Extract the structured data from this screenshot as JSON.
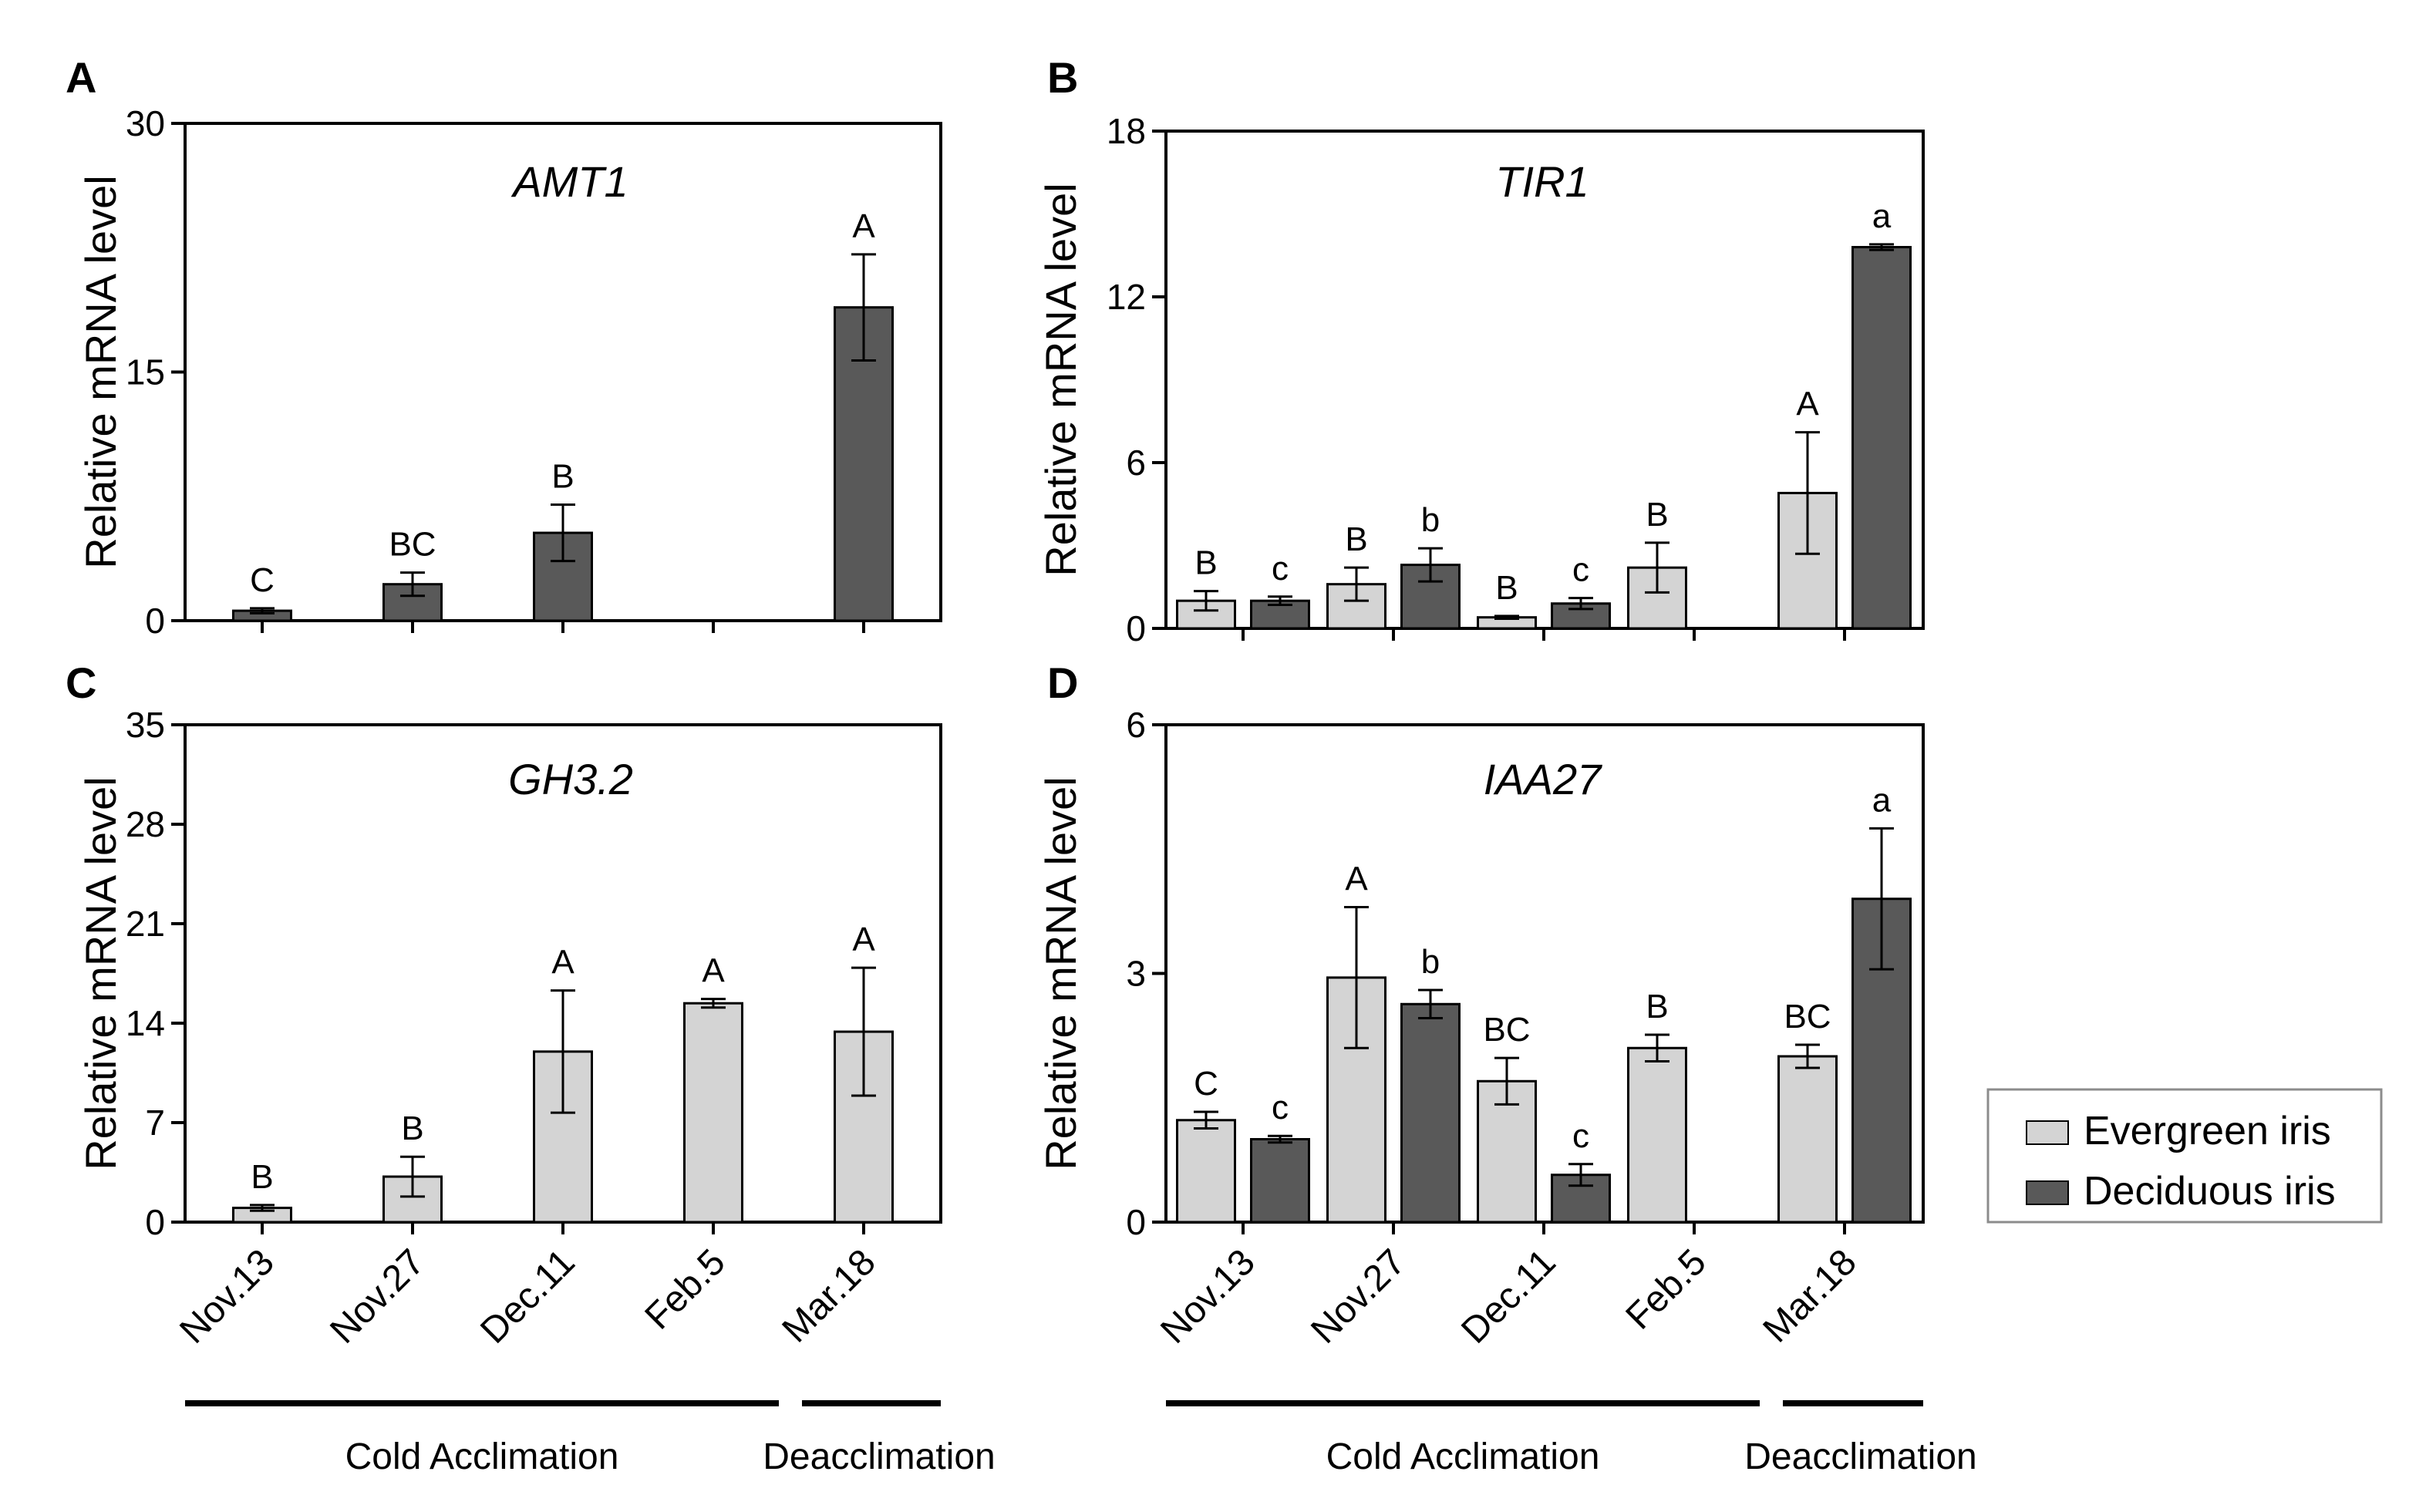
{
  "legend": [
    {
      "name": "Evergreen iris",
      "color": "#d4d4d4"
    },
    {
      "name": "Deciduous iris",
      "color": "#595959"
    }
  ],
  "x_categories": [
    "Nov.13",
    "Nov.27",
    "Dec.11",
    "Feb.5",
    "Mar.18"
  ],
  "phases": {
    "cold": "Cold Acclimation",
    "deacclimation": "Deacclimation"
  },
  "chart_data": [
    {
      "panel": "A",
      "type": "bar",
      "title": "AMT1",
      "ylabel": "Relative mRNA level",
      "ylim": [
        0,
        30
      ],
      "yticks": [
        0,
        15,
        30
      ],
      "categories": [
        "Nov.13",
        "Nov.27",
        "Dec.11",
        "Feb.5",
        "Mar.18"
      ],
      "series": [
        {
          "name": "Deciduous iris",
          "color": "#595959",
          "values": [
            0.6,
            2.2,
            5.3,
            null,
            18.9
          ],
          "errors": [
            0.15,
            0.7,
            1.7,
            null,
            3.2
          ],
          "labels": [
            "C",
            "BC",
            "B",
            null,
            "A"
          ]
        }
      ]
    },
    {
      "panel": "B",
      "type": "bar",
      "title": "TIR1",
      "ylabel": "Relative mRNA level",
      "ylim": [
        0,
        18
      ],
      "yticks": [
        0,
        6,
        12,
        18
      ],
      "categories": [
        "Nov.13",
        "Nov.27",
        "Dec.11",
        "Feb.5",
        "Mar.18"
      ],
      "series": [
        {
          "name": "Evergreen iris",
          "color": "#d4d4d4",
          "values": [
            1.0,
            1.6,
            0.4,
            2.2,
            4.9
          ],
          "errors": [
            0.35,
            0.6,
            0.05,
            0.9,
            2.2
          ],
          "labels": [
            "B",
            "B",
            "B",
            "B",
            "A"
          ]
        },
        {
          "name": "Deciduous iris",
          "color": "#595959",
          "values": [
            1.0,
            2.3,
            0.9,
            null,
            13.8
          ],
          "errors": [
            0.15,
            0.6,
            0.2,
            null,
            0.1
          ],
          "labels": [
            "c",
            "b",
            "c",
            null,
            "a"
          ]
        }
      ]
    },
    {
      "panel": "C",
      "type": "bar",
      "title": "GH3.2",
      "ylabel": "Relative mRNA level",
      "ylim": [
        0,
        35
      ],
      "yticks": [
        0,
        7,
        14,
        21,
        28,
        35
      ],
      "categories": [
        "Nov.13",
        "Nov.27",
        "Dec.11",
        "Feb.5",
        "Mar.18"
      ],
      "series": [
        {
          "name": "Evergreen iris",
          "color": "#d4d4d4",
          "values": [
            1.0,
            3.2,
            12.0,
            15.4,
            13.4
          ],
          "errors": [
            0.2,
            1.4,
            4.3,
            0.3,
            4.5
          ],
          "labels": [
            "B",
            "B",
            "A",
            "A",
            "A"
          ]
        }
      ]
    },
    {
      "panel": "D",
      "type": "bar",
      "title": "IAA27",
      "ylabel": "Relative mRNA level",
      "ylim": [
        0,
        6
      ],
      "yticks": [
        0,
        3,
        6
      ],
      "categories": [
        "Nov.13",
        "Nov.27",
        "Dec.11",
        "Feb.5",
        "Mar.18"
      ],
      "series": [
        {
          "name": "Evergreen iris",
          "color": "#d4d4d4",
          "values": [
            1.23,
            2.95,
            1.7,
            2.1,
            2.0
          ],
          "errors": [
            0.1,
            0.85,
            0.28,
            0.16,
            0.14
          ],
          "labels": [
            "C",
            "A",
            "BC",
            "B",
            "BC"
          ]
        },
        {
          "name": "Deciduous iris",
          "color": "#595959",
          "values": [
            1.0,
            2.63,
            0.57,
            null,
            3.9
          ],
          "errors": [
            0.04,
            0.17,
            0.13,
            null,
            0.85
          ],
          "labels": [
            "c",
            "b",
            "c",
            null,
            "a"
          ]
        }
      ]
    }
  ]
}
